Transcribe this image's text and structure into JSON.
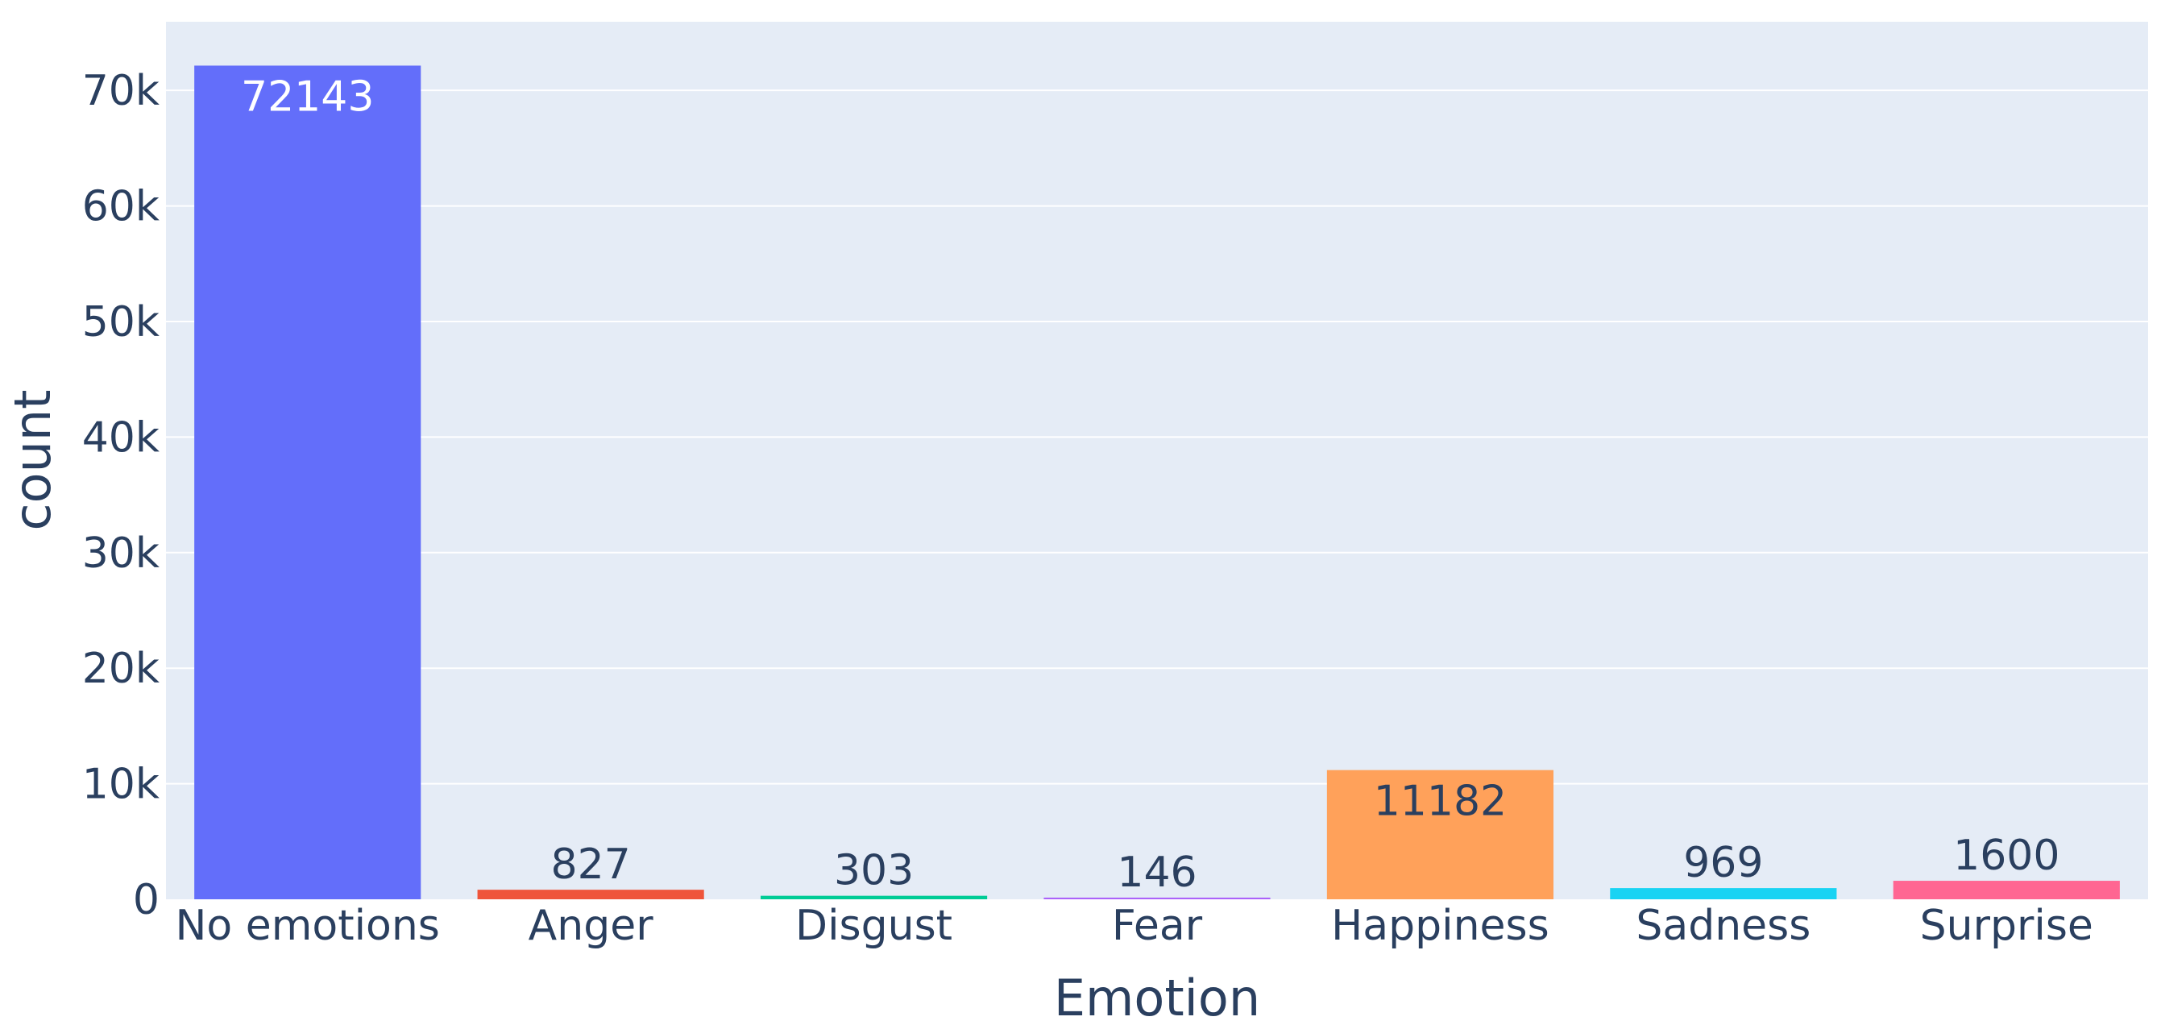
{
  "chart_data": {
    "type": "bar",
    "xlabel": "Emotion",
    "ylabel": "count",
    "categories": [
      "No emotions",
      "Anger",
      "Disgust",
      "Fear",
      "Happiness",
      "Sadness",
      "Surprise"
    ],
    "values": [
      72143,
      827,
      303,
      146,
      11182,
      969,
      1600
    ],
    "data_labels": [
      "72143",
      "827",
      "303",
      "146",
      "11182",
      "969",
      "1600"
    ],
    "colors": [
      "#636efa",
      "#ef553b",
      "#00cc96",
      "#ab63fa",
      "#ffa15a",
      "#19d3f3",
      "#ff6692"
    ],
    "ylim": [
      0,
      75939
    ],
    "yticks": [
      0,
      10000,
      20000,
      30000,
      40000,
      50000,
      60000,
      70000
    ],
    "ytick_labels": [
      "0",
      "10k",
      "20k",
      "30k",
      "40k",
      "50k",
      "60k",
      "70k"
    ],
    "grid": true,
    "legend": "none",
    "plot_background": "#e5ecf6",
    "text_color": "#2a3f5f"
  }
}
